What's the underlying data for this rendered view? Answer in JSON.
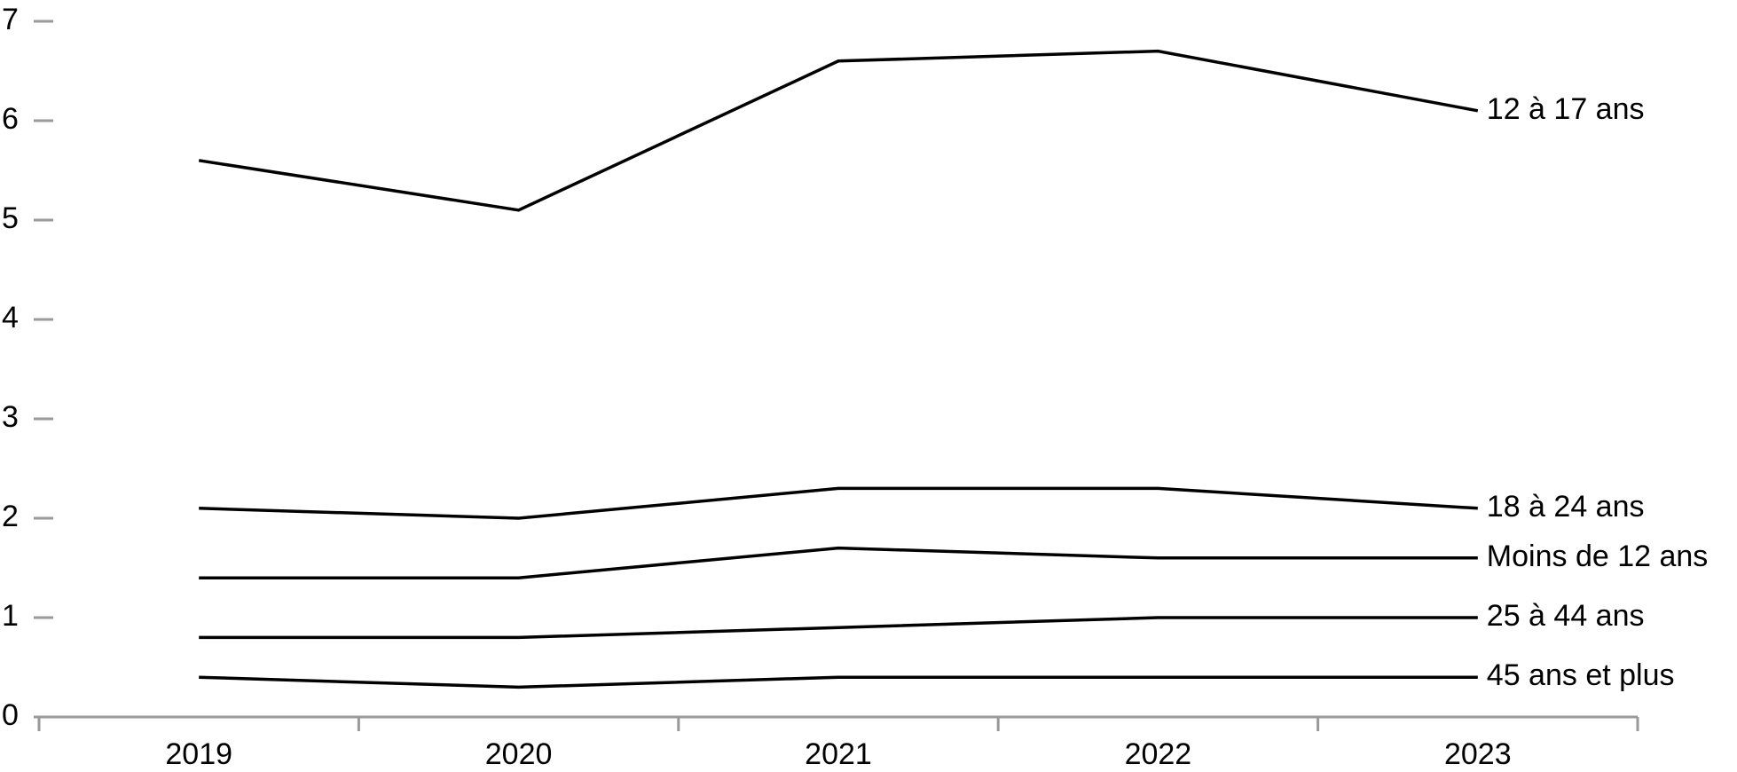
{
  "chart_data": {
    "type": "line",
    "categories": [
      "2019",
      "2020",
      "2021",
      "2022",
      "2023"
    ],
    "series": [
      {
        "name": "12 à 17 ans",
        "color": "#000000",
        "values": [
          5.6,
          5.1,
          6.6,
          6.7,
          6.1
        ]
      },
      {
        "name": "18 à 24 ans",
        "color": "#000000",
        "values": [
          2.1,
          2.0,
          2.3,
          2.3,
          2.1
        ]
      },
      {
        "name": "Moins de 12 ans",
        "color": "#000000",
        "values": [
          1.4,
          1.4,
          1.7,
          1.6,
          1.6
        ]
      },
      {
        "name": "25 à 44 ans",
        "color": "#000000",
        "values": [
          0.8,
          0.8,
          0.9,
          1.0,
          1.0
        ]
      },
      {
        "name": "45 ans et plus",
        "color": "#000000",
        "values": [
          0.4,
          0.3,
          0.4,
          0.4,
          0.4
        ]
      }
    ],
    "ylim": [
      0,
      7
    ],
    "yticks": [
      0,
      1,
      2,
      3,
      4,
      5,
      6,
      7
    ],
    "grid": false
  }
}
